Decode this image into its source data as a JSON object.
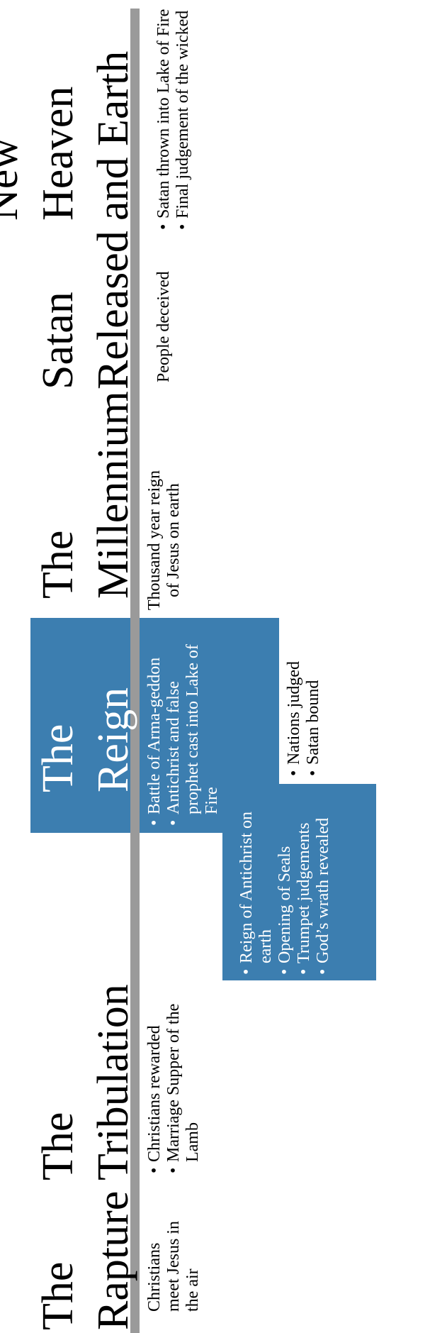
{
  "eras": [
    {
      "name": "the-rapture",
      "title": [
        "The",
        "Rapture"
      ],
      "description": "Christians meet Jesus in the air",
      "bullets": []
    },
    {
      "name": "the-tribulation",
      "title": [
        "The",
        "Tribulation"
      ],
      "description": "",
      "bullets": [
        "Christians rewarded",
        "Marriage Supper of the Lamb"
      ]
    },
    {
      "name": "the-reign",
      "title": [
        "The",
        "Reign"
      ],
      "description": "",
      "bullets": [
        "Battle of Arma-geddon",
        "Antichrist and false prophet cast into Lake of Fire"
      ]
    },
    {
      "name": "the-millennium",
      "title": [
        "The",
        "Millennium"
      ],
      "description": "Thousand year reign of Jesus on earth",
      "bullets": []
    },
    {
      "name": "satan-released",
      "title": [
        "Satan",
        "Released"
      ],
      "description": "People deceived",
      "bullets": []
    },
    {
      "name": "new-heaven-and-earth",
      "title": [
        "New",
        "Heaven",
        "and Earth"
      ],
      "description": "",
      "bullets": [
        "Satan thrown into Lake of Fire",
        "Final judgement of the wicked"
      ]
    }
  ],
  "tribulation_events": [
    "Reign of Antichrist on earth",
    "Opening of Seals",
    "Trumpet judgements",
    "God’s wrath revealed"
  ],
  "reign_outcomes": [
    "Nations judged",
    "Satan bound"
  ],
  "colors": {
    "panel": "#3c7eb0",
    "timeline": "#9a9a9a",
    "text": "#000000",
    "panel_text": "#ffffff"
  }
}
